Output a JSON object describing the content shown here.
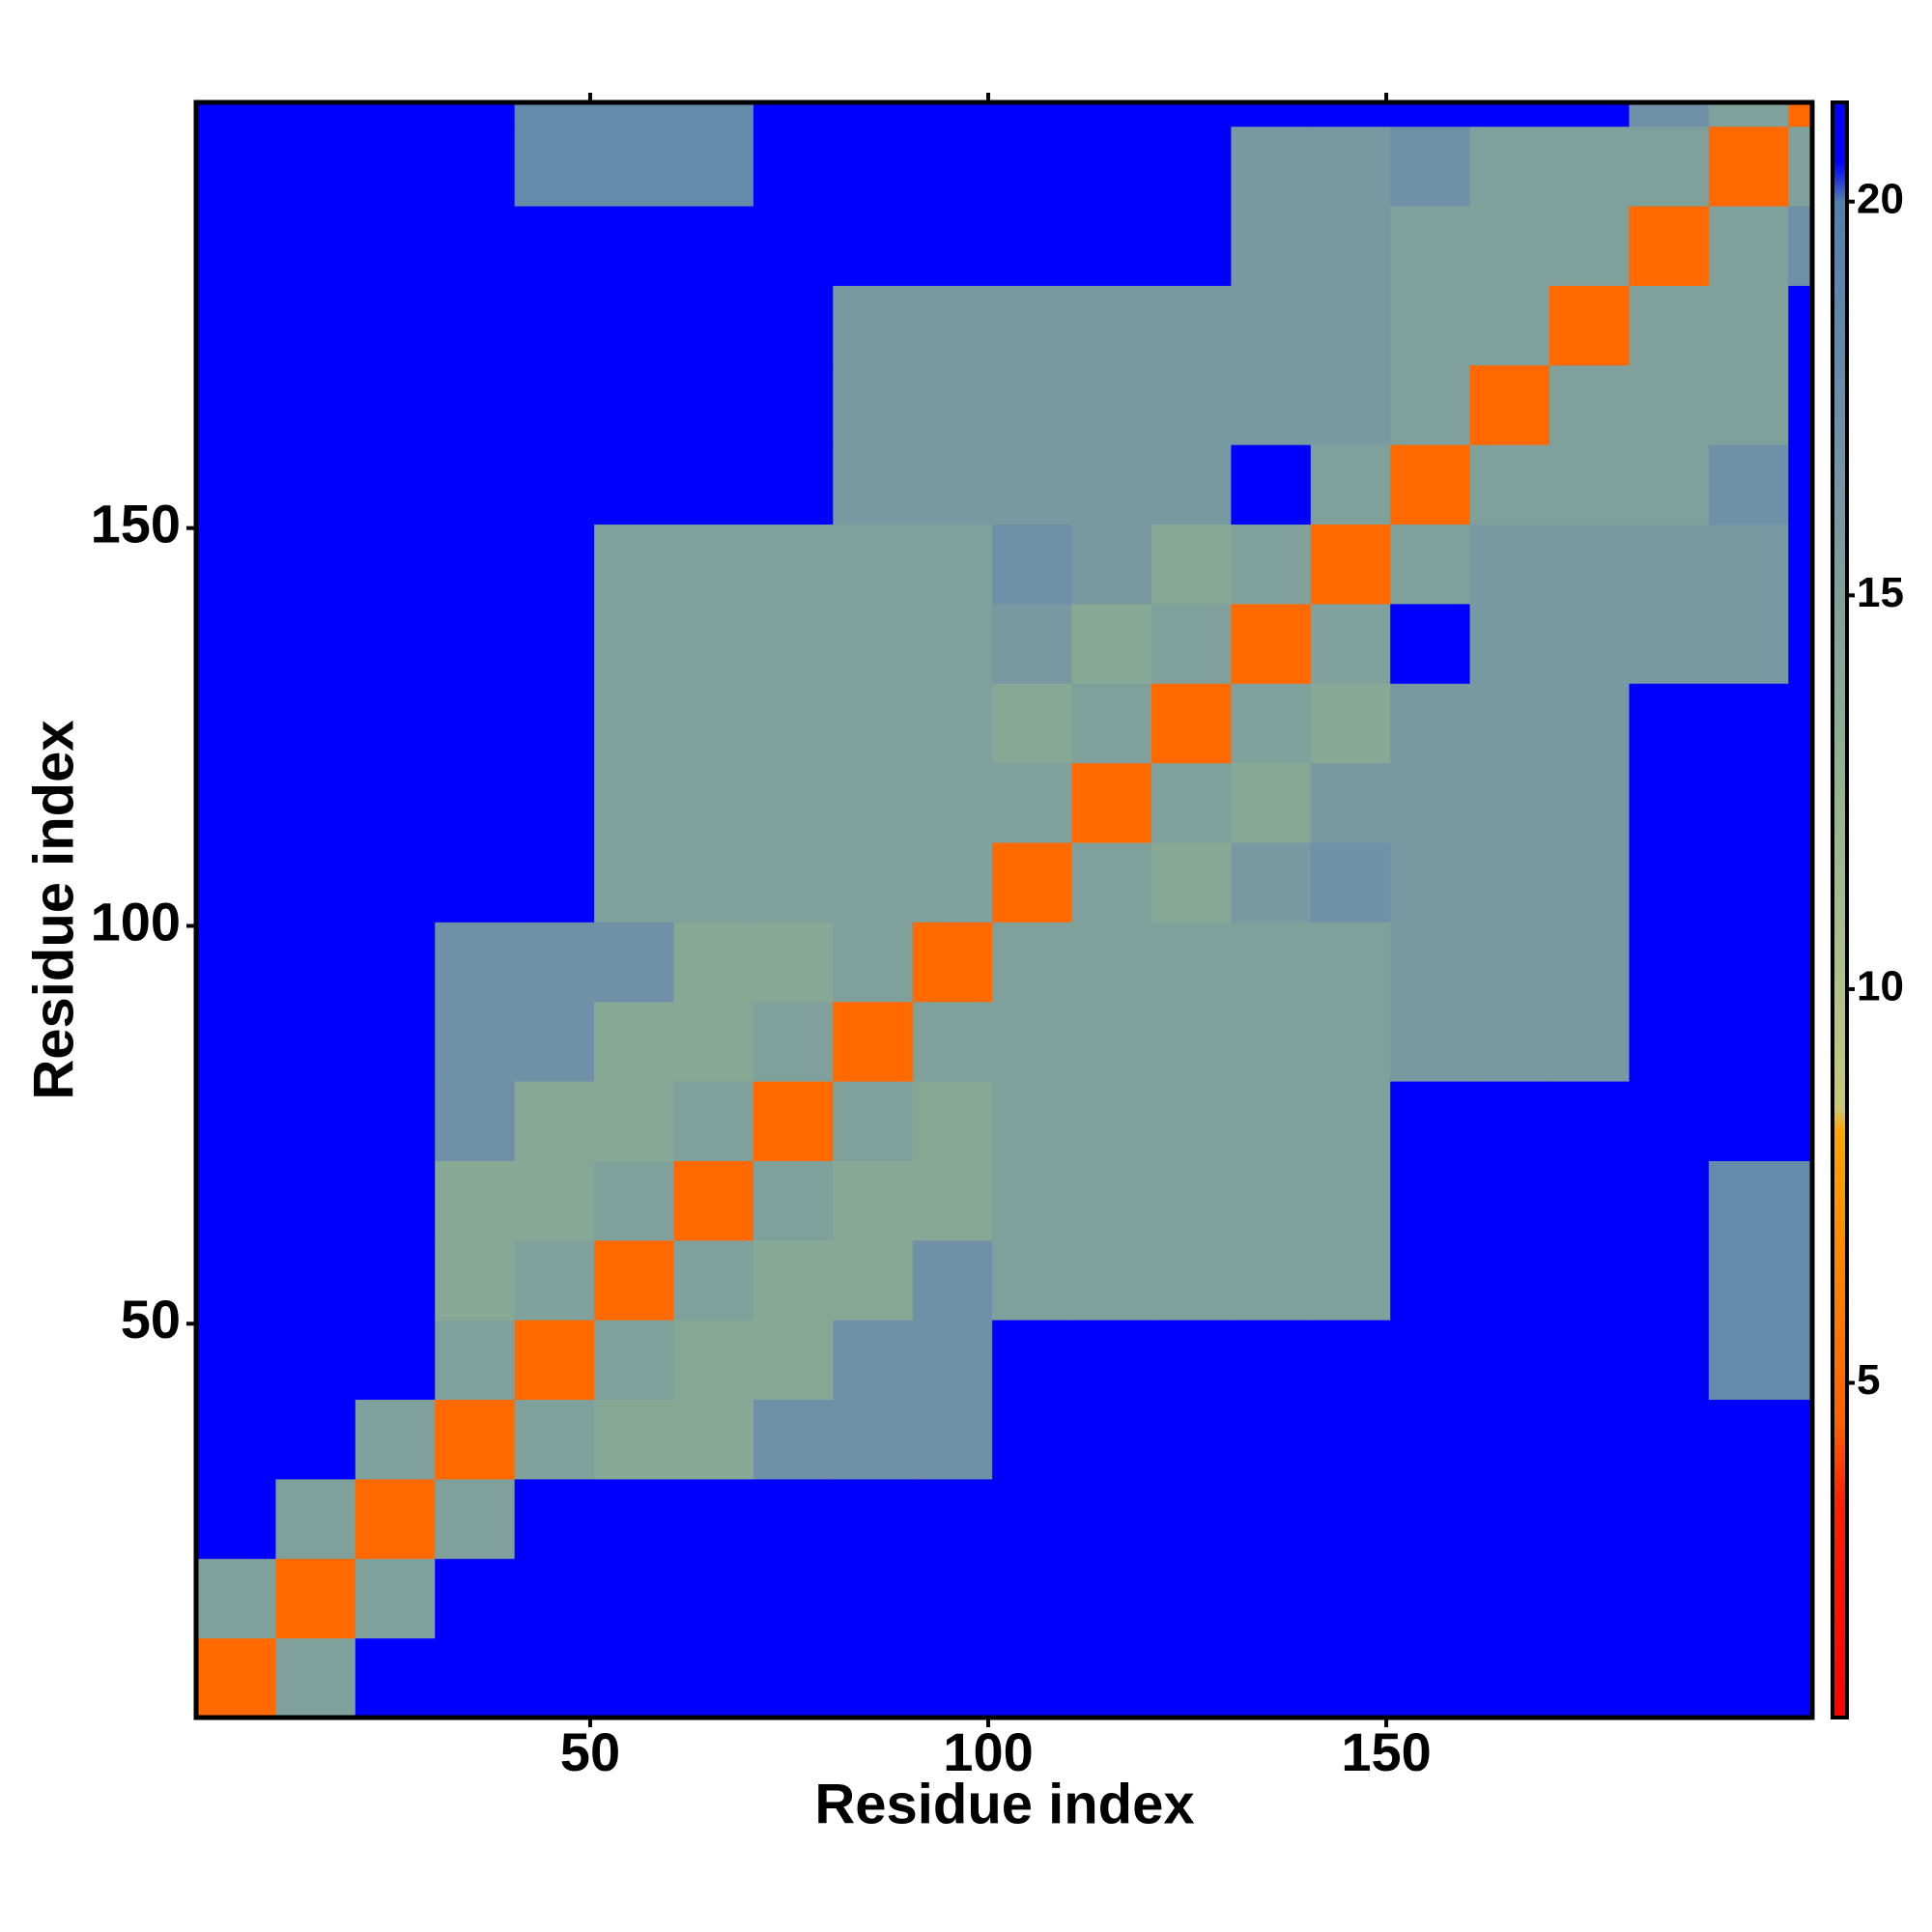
{
  "chart_data": {
    "type": "heatmap",
    "xlabel": "Residue index",
    "ylabel": "Residue index",
    "xlim": [
      0.5,
      203.5
    ],
    "ylim": [
      0.5,
      203.5
    ],
    "xticks": [
      50,
      100,
      150
    ],
    "yticks": [
      50,
      100,
      150
    ],
    "xbins": [
      0.5,
      10.5,
      20.5,
      30.5,
      40.5,
      50.5,
      60.5,
      70.5,
      80.5,
      90.5,
      100.5,
      110.5,
      120.5,
      130.5,
      140.5,
      150.5,
      160.5,
      170.5,
      180.5,
      190.5,
      200.5,
      203.5
    ],
    "ybins": [
      0.5,
      10.5,
      20.5,
      30.5,
      40.5,
      50.5,
      60.5,
      70.5,
      80.5,
      90.5,
      100.5,
      110.5,
      120.5,
      130.5,
      140.5,
      150.5,
      160.5,
      170.5,
      180.5,
      190.5,
      200.5,
      203.5
    ],
    "z": [
      [
        5,
        15,
        21,
        21,
        21,
        21,
        21,
        21,
        21,
        21,
        21,
        21,
        21,
        21,
        21,
        21,
        21,
        21,
        21,
        21,
        21
      ],
      [
        15,
        5,
        15,
        21,
        21,
        21,
        21,
        21,
        21,
        21,
        21,
        21,
        21,
        21,
        21,
        21,
        21,
        21,
        21,
        21,
        21
      ],
      [
        21,
        15,
        5,
        15,
        21,
        21,
        21,
        21,
        21,
        21,
        21,
        21,
        21,
        21,
        21,
        21,
        21,
        21,
        21,
        21,
        21
      ],
      [
        21,
        21,
        15,
        5,
        15,
        14,
        14,
        17,
        17,
        17,
        21,
        21,
        21,
        21,
        21,
        21,
        21,
        21,
        21,
        21,
        21
      ],
      [
        21,
        21,
        21,
        15,
        5,
        15,
        14,
        14,
        17,
        17,
        21,
        21,
        21,
        21,
        21,
        21,
        21,
        21,
        21,
        18,
        18
      ],
      [
        21,
        21,
        21,
        14,
        15,
        5,
        15,
        14,
        14,
        17,
        15,
        15,
        15,
        15,
        15,
        21,
        21,
        21,
        21,
        18,
        18
      ],
      [
        21,
        21,
        21,
        14,
        14,
        15,
        5,
        15,
        14,
        14,
        15,
        15,
        15,
        15,
        15,
        21,
        21,
        21,
        21,
        18,
        18
      ],
      [
        21,
        21,
        21,
        17,
        14,
        14,
        15,
        5,
        15,
        14,
        15,
        15,
        15,
        15,
        15,
        21,
        21,
        21,
        21,
        21,
        21
      ],
      [
        21,
        21,
        21,
        17,
        17,
        14,
        14,
        15,
        5,
        15,
        15,
        15,
        15,
        15,
        15,
        16,
        16,
        16,
        21,
        21,
        21
      ],
      [
        21,
        21,
        21,
        17,
        17,
        17,
        14,
        14,
        15,
        5,
        15,
        15,
        15,
        15,
        15,
        16,
        16,
        16,
        21,
        21,
        21
      ],
      [
        21,
        21,
        21,
        21,
        21,
        15,
        15,
        15,
        15,
        15,
        5,
        15,
        14,
        16,
        17,
        16,
        16,
        16,
        21,
        21,
        21
      ],
      [
        21,
        21,
        21,
        21,
        21,
        15,
        15,
        15,
        15,
        15,
        15,
        5,
        15,
        14,
        16,
        16,
        16,
        16,
        21,
        21,
        21
      ],
      [
        21,
        21,
        21,
        21,
        21,
        15,
        15,
        15,
        15,
        15,
        14,
        15,
        5,
        15,
        14,
        16,
        16,
        16,
        21,
        21,
        21
      ],
      [
        21,
        21,
        21,
        21,
        21,
        15,
        15,
        15,
        15,
        15,
        16,
        14,
        15,
        5,
        15,
        21,
        16,
        16,
        16,
        16,
        21
      ],
      [
        21,
        21,
        21,
        21,
        21,
        15,
        15,
        15,
        15,
        15,
        17,
        16,
        14,
        15,
        5,
        15,
        16,
        16,
        16,
        16,
        21
      ],
      [
        21,
        21,
        21,
        21,
        21,
        21,
        21,
        21,
        16,
        16,
        16,
        16,
        16,
        21,
        15,
        5,
        15,
        15,
        15,
        17,
        21
      ],
      [
        21,
        21,
        21,
        21,
        21,
        21,
        21,
        21,
        16,
        16,
        16,
        16,
        16,
        16,
        16,
        15,
        5,
        15,
        15,
        15,
        21
      ],
      [
        21,
        21,
        21,
        21,
        21,
        21,
        21,
        21,
        16,
        16,
        16,
        16,
        16,
        16,
        16,
        15,
        15,
        5,
        15,
        15,
        21
      ],
      [
        21,
        21,
        21,
        21,
        21,
        21,
        21,
        21,
        21,
        21,
        21,
        21,
        21,
        16,
        16,
        15,
        15,
        15,
        5,
        15,
        17
      ],
      [
        21,
        21,
        21,
        21,
        18,
        18,
        18,
        21,
        21,
        21,
        21,
        21,
        21,
        16,
        16,
        17,
        15,
        15,
        15,
        5,
        15
      ],
      [
        21,
        21,
        21,
        21,
        18,
        18,
        18,
        21,
        21,
        21,
        21,
        21,
        21,
        21,
        21,
        21,
        21,
        21,
        17,
        15,
        5
      ]
    ],
    "colorbar": {
      "lim": [
        0.75,
        21.26
      ],
      "ticks": [
        5,
        10,
        15,
        20
      ]
    },
    "colorscale": [
      {
        "value": 0.75,
        "color": "#ff0000"
      },
      {
        "value": 3.5,
        "color": "#ff2000"
      },
      {
        "value": 4.5,
        "color": "#ff6000"
      },
      {
        "value": 8.2,
        "color": "#ffa500"
      },
      {
        "value": 8.5,
        "color": "#c8c878"
      },
      {
        "value": 10.5,
        "color": "#a8c08c"
      },
      {
        "value": 13,
        "color": "#90b090"
      },
      {
        "value": 17,
        "color": "#7090a8"
      },
      {
        "value": 20,
        "color": "#5080b0"
      },
      {
        "value": 20.5,
        "color": "#0000ff"
      },
      {
        "value": 21.26,
        "color": "#0000ff"
      }
    ]
  }
}
